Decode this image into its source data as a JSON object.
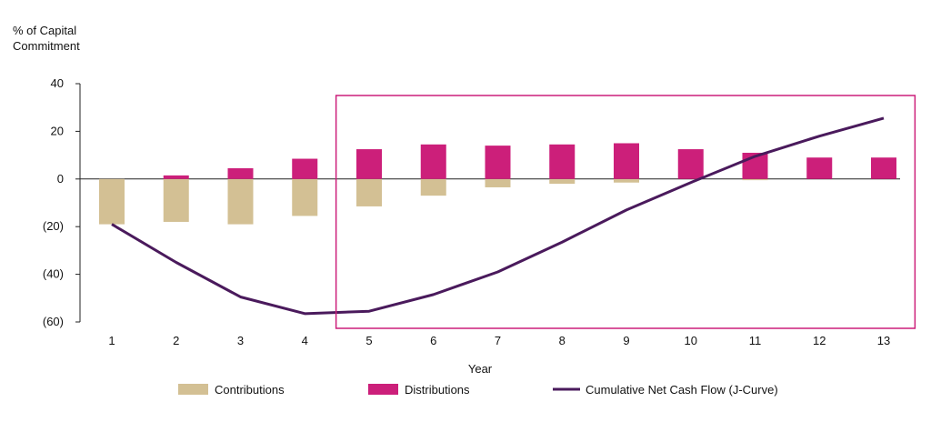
{
  "chart_data": {
    "type": "bar",
    "ylabel_lines": [
      "% of Capital",
      "Commitment"
    ],
    "xlabel": "Year",
    "categories": [
      "1",
      "2",
      "3",
      "4",
      "5",
      "6",
      "7",
      "8",
      "9",
      "10",
      "11",
      "12",
      "13"
    ],
    "ylim": [
      -60,
      40
    ],
    "yticks": [
      -60,
      -40,
      -20,
      0,
      20,
      40
    ],
    "ytick_labels": [
      "(60)",
      "(40)",
      "(20)",
      "0",
      "20",
      "40"
    ],
    "grid": false,
    "legend_position": "bottom",
    "highlight_box": {
      "from_category": "5",
      "to_category": "13",
      "color": "#cc1f7a"
    },
    "series": [
      {
        "name": "Contributions",
        "kind": "bar",
        "color": "#d3c094",
        "values": [
          -19,
          -18,
          -19,
          -15.5,
          -11.5,
          -7,
          -3.5,
          -2,
          -1.5,
          0,
          -0.5,
          0,
          0
        ]
      },
      {
        "name": "Distributions",
        "kind": "bar",
        "color": "#cc1f7a",
        "values": [
          0,
          1.5,
          4.5,
          8.5,
          12.5,
          14.5,
          14,
          14.5,
          15,
          12.5,
          11,
          9,
          9
        ]
      },
      {
        "name": "Cumulative Net Cash Flow (J-Curve)",
        "kind": "line",
        "color": "#4a1a5c",
        "values": [
          -19,
          -35,
          -49.5,
          -56.5,
          -55.5,
          -48.5,
          -39,
          -26.5,
          -13,
          -1.5,
          9.5,
          18,
          25.5
        ]
      }
    ]
  }
}
